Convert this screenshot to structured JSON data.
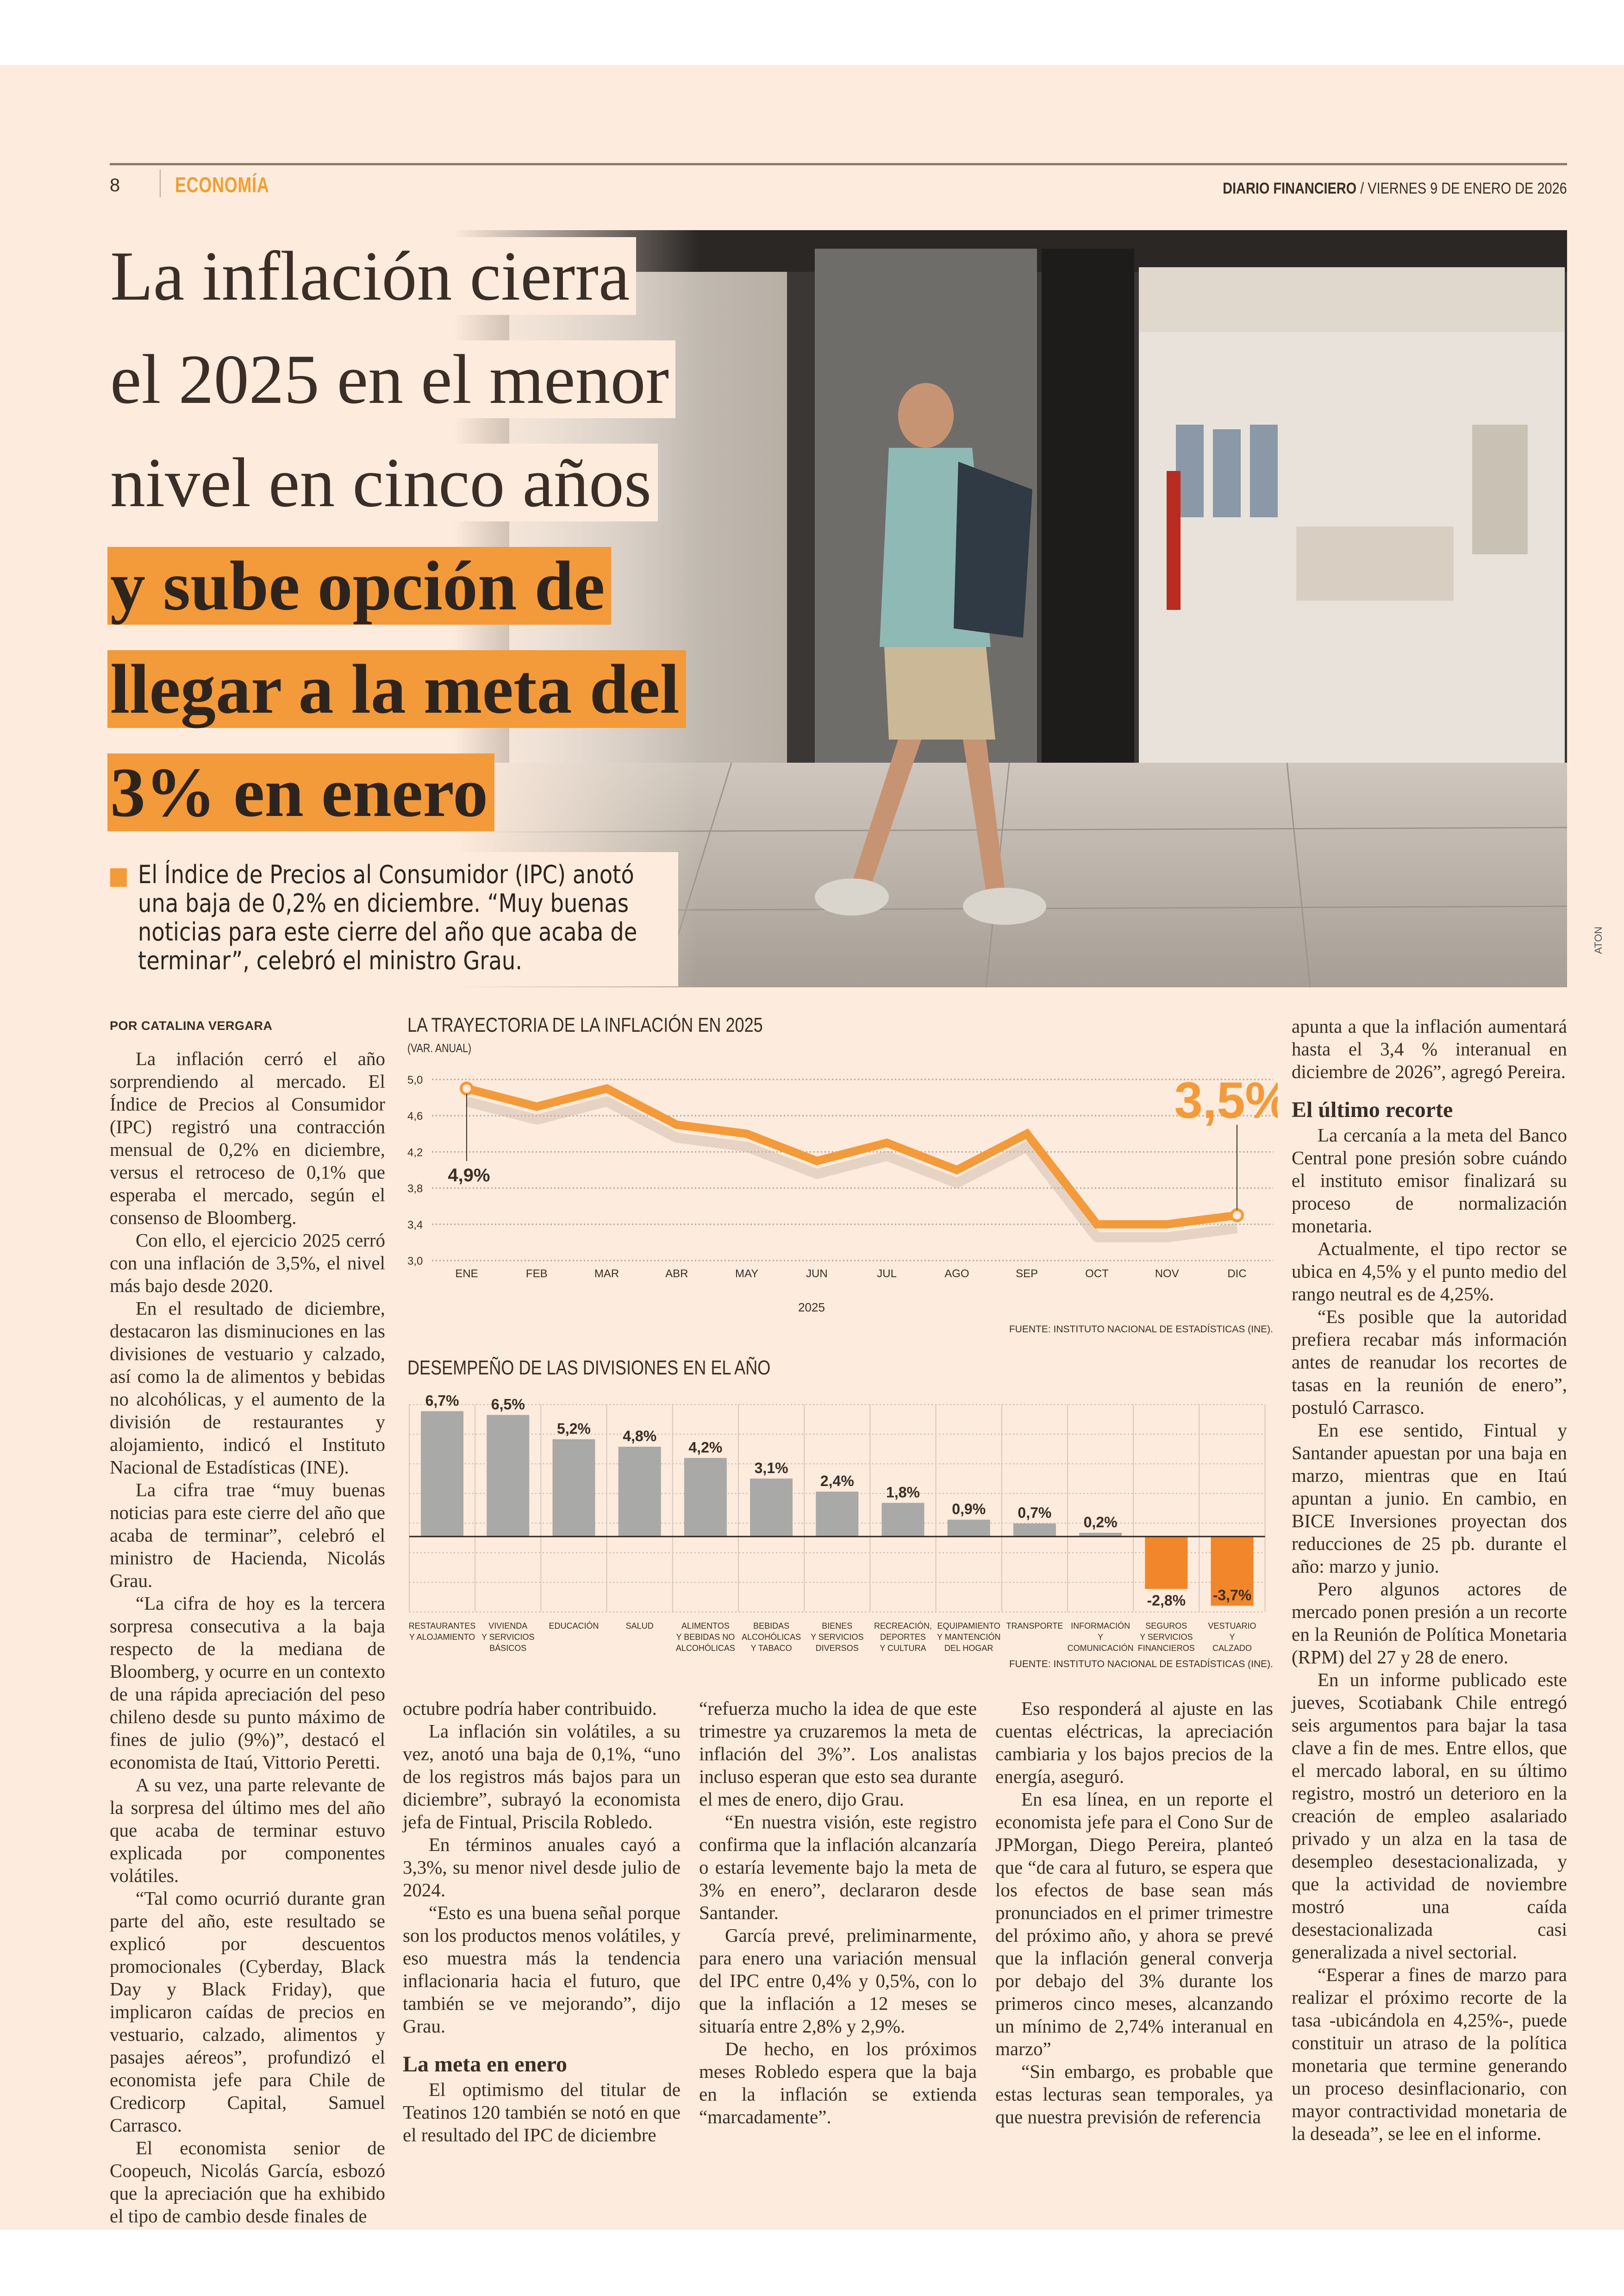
{
  "header": {
    "page_number": "8",
    "section": "ECONOMÍA",
    "publication": "DIARIO FINANCIERO",
    "date": " / VIERNES 9 DE ENERO DE 2026"
  },
  "headline": {
    "light_lines": [
      "La inflación cierra",
      "el 2025 en el menor",
      "nivel en cinco años"
    ],
    "bold_lines": [
      "y sube opción de",
      "llegar a la meta del",
      "3% en enero"
    ]
  },
  "photo": {
    "credit": "ATON"
  },
  "lead": "El Índice de Precios al Consumidor (IPC) anotó una baja de 0,2% en diciembre. “Muy buenas noticias para este cierre del año que acaba de terminar”, celebró el ministro Grau.",
  "byline": "POR CATALINA VERGARA",
  "columns": {
    "c1": [
      "La inflación cerró el año sorprendiendo al mercado. El Índice de Precios al Consumidor (IPC) registró una contracción mensual de 0,2% en diciembre, versus el retroceso de 0,1% que esperaba el mercado, según el consenso de Bloomberg.",
      "Con ello, el ejercicio 2025 cerró con una inflación de 3,5%, el nivel más bajo desde 2020.",
      "En el resultado de diciembre, destacaron las disminuciones en las divisiones de vestuario y calzado, así como la de alimentos y bebidas no alcohólicas, y el aumento de la división de restaurantes y alojamiento, indicó el Instituto Nacional de Estadísticas (INE).",
      "La cifra trae “muy buenas noticias para este cierre del año que acaba de terminar”, celebró el ministro de Hacienda, Nicolás Grau.",
      "“La cifra de hoy es la tercera sorpresa consecutiva a la baja respecto de la mediana de Bloomberg, y ocurre en un contexto de una rápida apreciación del peso chileno desde su punto máximo de fines de julio (9%)”, destacó el economista de Itaú, Vittorio Peretti.",
      "A su vez, una parte relevante de la sorpresa del último mes del año que acaba de terminar estuvo explicada por componentes volátiles.",
      "“Tal como ocurrió durante gran parte del año, este resultado se explicó por descuentos promocionales (Cyberday, Black Day y Black Friday), que implicaron caídas de precios en vestuario, calzado, alimentos y pasajes aéreos”, profundizó el economista jefe para Chile de Credicorp Capital, Samuel Carrasco.",
      "El economista senior de Coopeuch, Nicolás García, esbozó que la apreciación que ha exhibido el tipo de cambio desde finales de"
    ],
    "c2": [
      "octubre podría haber contribuido.",
      "La inflación sin volátiles, a su vez, anotó una baja de 0,1%, “uno de los registros más bajos para un diciembre”, subrayó la economista jefa de Fintual, Priscila Robledo.",
      "En términos anuales cayó a 3,3%, su menor nivel desde julio de 2024.",
      "“Esto es una buena señal porque son los productos menos volátiles, y eso muestra más la tendencia inflacionaria hacia el futuro, que también se ve mejorando”, dijo Grau."
    ],
    "c2_heading": "La meta en enero",
    "c2_after": [
      "El optimismo del titular de Teatinos 120 también se notó en que el resultado del IPC de diciembre"
    ],
    "c3": [
      "“refuerza mucho la idea de que este trimestre ya cruzaremos la meta de inflación del 3%”. Los analistas incluso esperan que esto sea durante el mes de enero, dijo Grau.",
      "“En nuestra visión, este registro confirma que la inflación alcanzaría o estaría levemente bajo la meta de 3% en enero”, declararon desde Santander.",
      "García prevé, preliminarmente, para enero una variación mensual del IPC entre 0,4% y 0,5%, con lo que la inflación a 12 meses se situaría entre 2,8% y 2,9%.",
      "De hecho, en los próximos meses Robledo espera que la baja en la inflación se extienda “marcadamente”."
    ],
    "c4": [
      "Eso responderá al ajuste en las cuentas eléctricas, la apreciación cambiaria y los bajos precios de la energía, aseguró.",
      "En esa línea, en un reporte el economista jefe para el Cono Sur de JPMorgan, Diego Pereira, planteó que “de cara al futuro, se espera que los efectos de base sean más pronunciados en el primer trimestre del próximo año, y ahora se prevé que la inflación general converja por debajo del 3% durante los primeros cinco meses, alcanzando un mínimo de 2,74% interanual en marzo”",
      "“Sin embargo, es probable que estas lecturas sean temporales, ya que nuestra previsión de referencia"
    ],
    "c5": [
      "apunta a que la inflación aumentará hasta el 3,4 % interanual en diciembre de 2026”, agregó Pereira."
    ],
    "c5_heading": "El último recorte",
    "c5_after": [
      "La cercanía a la meta del Banco Central pone presión sobre cuándo el instituto emisor finalizará su proceso de normalización monetaria.",
      "Actualmente, el tipo rector se ubica en 4,5% y el punto medio del rango neutral es de 4,25%.",
      "“Es posible que la autoridad prefiera recabar más información antes de reanudar los recortes de tasas en la reunión de enero”, postuló Carrasco.",
      "En ese sentido, Fintual y Santander apuestan por una baja en marzo, mientras que en Itaú apuntan a junio. En cambio, en BICE Inversiones proyectan dos reducciones de 25 pb. durante el año: marzo y junio.",
      "Pero algunos actores de mercado ponen presión a un recorte en la Reunión de Política Monetaria (RPM) del 27 y 28 de enero.",
      "En un informe publicado este jueves, Scotiabank Chile entregó seis argumentos para bajar la tasa clave a fin de mes. Entre ellos, que el mercado laboral, en su último registro, mostró un deterioro en la creación de empleo asalariado privado y un alza en la tasa de desempleo desestacionalizada, y que la actividad de noviembre mostró una caída desestacionalizada casi generalizada a nivel sectorial.",
      "“Esperar a fines de marzo para realizar el próximo recorte de la tasa -ubicándola en 4,25%-, puede constituir un atraso de la política monetaria que termine generando un proceso desinflacionario, con mayor contractividad monetaria de la deseada”, se lee en el informe."
    ]
  },
  "chart_data": [
    {
      "type": "line",
      "title": "LA TRAYECTORIA DE LA INFLACIÓN EN 2025",
      "subtitle": "(VAR. ANUAL)",
      "xlabel": "2025",
      "ylabel": "",
      "x": [
        "ENE",
        "FEB",
        "MAR",
        "ABR",
        "MAY",
        "JUN",
        "JUL",
        "AGO",
        "SEP",
        "OCT",
        "NOV",
        "DIC"
      ],
      "values": [
        4.9,
        4.7,
        4.9,
        4.5,
        4.4,
        4.1,
        4.3,
        4.0,
        4.4,
        3.4,
        3.4,
        3.5
      ],
      "ylim": [
        3.0,
        5.0
      ],
      "yticks": [
        "5,0",
        "4,6",
        "4,2",
        "3,8",
        "3,4",
        "3,0"
      ],
      "ytick_values": [
        5.0,
        4.6,
        4.2,
        3.8,
        3.4,
        3.0
      ],
      "annotations": {
        "start": "4,9%",
        "end": "3,5%"
      },
      "grid": true,
      "source": "FUENTE: INSTITUTO NACIONAL DE ESTADÍSTICAS (INE).",
      "color": "#f39a3a"
    },
    {
      "type": "bar",
      "title": "DESEMPEÑO DE LAS DIVISIONES EN EL AÑO",
      "categories": [
        [
          "RESTAURANTES",
          "Y ALOJAMIENTO"
        ],
        [
          "VIVIENDA",
          "Y SERVICIOS",
          "BÁSICOS"
        ],
        [
          "EDUCACIÓN"
        ],
        [
          "SALUD"
        ],
        [
          "ALIMENTOS",
          "Y BEBIDAS NO",
          "ALCOHÓLICAS"
        ],
        [
          "BEBIDAS",
          "ALCOHÓLICAS",
          "Y TABACO"
        ],
        [
          "BIENES",
          "Y SERVICIOS",
          "DIVERSOS"
        ],
        [
          "RECREACIÓN,",
          "DEPORTES",
          "Y CULTURA"
        ],
        [
          "EQUIPAMIENTO",
          "Y MANTENCIÓN",
          "DEL HOGAR"
        ],
        [
          "TRANSPORTE"
        ],
        [
          "INFORMACIÓN",
          "Y",
          "COMUNICACIÓN"
        ],
        [
          "SEGUROS",
          "Y SERVICIOS",
          "FINANCIEROS"
        ],
        [
          "VESTUARIO",
          "Y",
          "CALZADO"
        ]
      ],
      "values": [
        6.7,
        6.5,
        5.2,
        4.8,
        4.2,
        3.1,
        2.4,
        1.8,
        0.9,
        0.7,
        0.2,
        -2.8,
        -3.7
      ],
      "labels": [
        "6,7%",
        "6,5%",
        "5,2%",
        "4,8%",
        "4,2%",
        "3,1%",
        "2,4%",
        "1,8%",
        "0,9%",
        "0,7%",
        "0,2%",
        "-2,8%",
        "-3,7%"
      ],
      "ylim": [
        -4,
        7
      ],
      "source": "FUENTE: INSTITUTO NACIONAL DE ESTADÍSTICAS (INE).",
      "colors": {
        "positive": "#a9a9a7",
        "negative": "#f2862a"
      }
    }
  ]
}
